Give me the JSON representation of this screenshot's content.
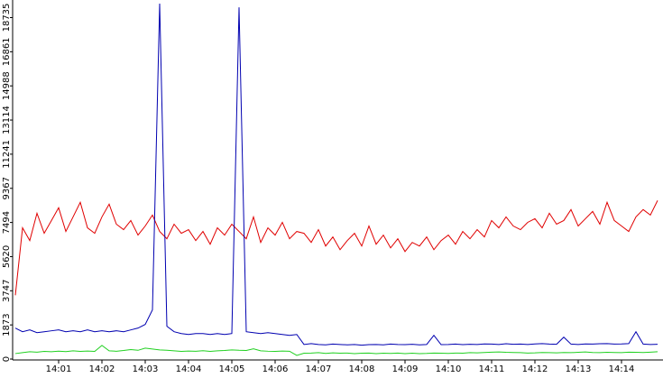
{
  "chart_data": {
    "type": "line",
    "categories": [
      null,
      null,
      null,
      null,
      null,
      null,
      "14:01",
      null,
      null,
      null,
      null,
      null,
      "14:02",
      null,
      null,
      null,
      null,
      null,
      "14:03",
      null,
      null,
      null,
      null,
      null,
      "14:04",
      null,
      null,
      null,
      null,
      null,
      "14:05",
      null,
      null,
      null,
      null,
      null,
      "14:06",
      null,
      null,
      null,
      null,
      null,
      "14:07",
      null,
      null,
      null,
      null,
      null,
      "14:08",
      null,
      null,
      null,
      null,
      null,
      "14:09",
      null,
      null,
      null,
      null,
      null,
      "14:10",
      null,
      null,
      null,
      null,
      null,
      "14:11",
      null,
      null,
      null,
      null,
      null,
      "14:12",
      null,
      null,
      null,
      null,
      null,
      "14:13",
      null,
      null,
      null,
      null,
      null,
      "14:14",
      null,
      null,
      null,
      null,
      null
    ],
    "series": [
      {
        "color": "#e00000",
        "values": [
          3500,
          7200,
          6500,
          8000,
          6900,
          7600,
          8300,
          7000,
          7800,
          8600,
          7200,
          6900,
          7800,
          8500,
          7400,
          7100,
          7600,
          6800,
          7300,
          7900,
          7000,
          6600,
          7400,
          6900,
          7100,
          6500,
          7000,
          6300,
          7200,
          6800,
          7400,
          7000,
          6600,
          7800,
          6400,
          7200,
          6800,
          7500,
          6600,
          7000,
          6900,
          6400,
          7100,
          6200,
          6700,
          6000,
          6500,
          6900,
          6200,
          7300,
          6300,
          6800,
          6100,
          6600,
          5900,
          6400,
          6200,
          6700,
          6000,
          6500,
          6800,
          6300,
          7000,
          6600,
          7100,
          6700,
          7600,
          7200,
          7800,
          7300,
          7100,
          7500,
          7700,
          7200,
          8000,
          7400,
          7600,
          8200,
          7300,
          7700,
          8100,
          7400,
          8600,
          7600,
          7300,
          7000,
          7800,
          8200,
          7900,
          8700
        ]
      },
      {
        "color": "#0000b0",
        "values": [
          1700,
          1500,
          1600,
          1450,
          1500,
          1550,
          1600,
          1500,
          1550,
          1500,
          1600,
          1500,
          1550,
          1500,
          1550,
          1500,
          1600,
          1700,
          1900,
          2700,
          19500,
          1800,
          1500,
          1400,
          1350,
          1400,
          1400,
          1350,
          1400,
          1350,
          1400,
          19300,
          1500,
          1450,
          1400,
          1450,
          1400,
          1350,
          1300,
          1350,
          800,
          850,
          800,
          780,
          820,
          800,
          780,
          800,
          760,
          790,
          800,
          780,
          820,
          800,
          790,
          810,
          780,
          800,
          1300,
          790,
          800,
          820,
          790,
          810,
          800,
          830,
          820,
          800,
          840,
          810,
          820,
          800,
          830,
          850,
          820,
          810,
          1200,
          820,
          800,
          830,
          820,
          840,
          850,
          820,
          830,
          850,
          1500,
          820,
          800,
          810
        ]
      },
      {
        "color": "#20d020",
        "values": [
          300,
          350,
          400,
          380,
          420,
          400,
          430,
          410,
          450,
          420,
          440,
          420,
          750,
          450,
          430,
          470,
          520,
          480,
          600,
          550,
          500,
          480,
          450,
          420,
          440,
          430,
          460,
          420,
          450,
          470,
          500,
          480,
          470,
          560,
          450,
          430,
          420,
          440,
          430,
          200,
          320,
          330,
          350,
          310,
          340,
          320,
          330,
          300,
          320,
          330,
          300,
          320,
          310,
          330,
          300,
          320,
          300,
          310,
          330,
          320,
          310,
          330,
          320,
          350,
          340,
          360,
          380,
          390,
          370,
          360,
          350,
          330,
          340,
          360,
          350,
          340,
          360,
          350,
          370,
          390,
          360,
          350,
          370,
          360,
          350,
          380,
          370,
          360,
          380,
          400
        ]
      }
    ],
    "ylim": [
      0,
      19700
    ],
    "yticks": [
      0,
      1873,
      3747,
      5620,
      7494,
      9367,
      11241,
      13114,
      14988,
      16861,
      18735
    ]
  }
}
